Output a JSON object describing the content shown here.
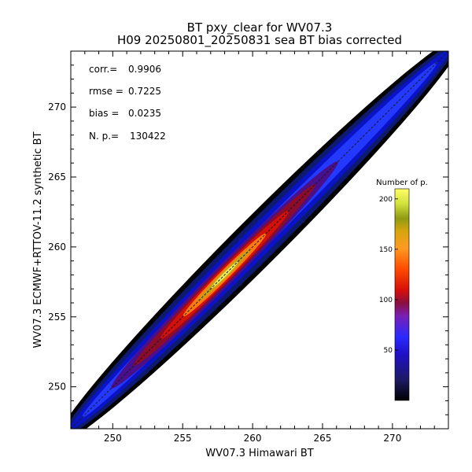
{
  "chart_data": {
    "type": "heatmap",
    "title": "BT pxy_clear for WV07.3",
    "subtitle": "H09 20250801_20250831 sea BT bias corrected",
    "xlabel": "WV07.3 Himawari BT",
    "ylabel": "WV07.3 ECMWF+RTTOV-11.2 synthetic BT",
    "xlim": [
      247,
      274
    ],
    "ylim": [
      247,
      274
    ],
    "x_ticks": [
      250,
      255,
      260,
      265,
      270
    ],
    "y_ticks": [
      250,
      255,
      260,
      265,
      270
    ],
    "x_tick_labels": [
      "250",
      "255",
      "260",
      "265",
      "270"
    ],
    "y_tick_labels": [
      "250",
      "255",
      "260",
      "265",
      "270"
    ],
    "stats": [
      {
        "label": "corr.=",
        "value": "0.9906"
      },
      {
        "label": "rmse =",
        "value": "0.7225"
      },
      {
        "label": "bias =",
        "value": "0.0235"
      },
      {
        "label": "N. p.=",
        "value": "130422"
      }
    ],
    "density": {
      "ridge_start": [
        247,
        247
      ],
      "ridge_end": [
        274,
        274
      ],
      "peak_center": [
        258,
        258
      ],
      "max_count": 210
    },
    "colorbar": {
      "title": "Number of p.",
      "range": [
        0,
        210
      ],
      "ticks": [
        50,
        100,
        150,
        200
      ],
      "tick_labels": [
        "50",
        "100",
        "150",
        "200"
      ]
    },
    "one_to_one_line": true,
    "grid": false,
    "legend": "none"
  }
}
